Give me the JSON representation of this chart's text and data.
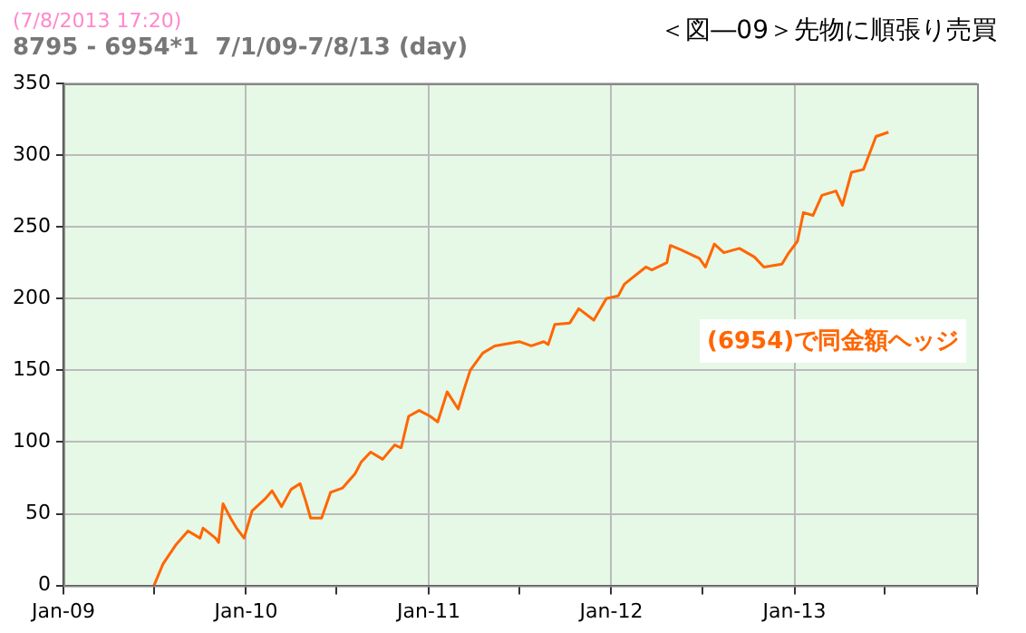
{
  "chart_data": {
    "type": "line",
    "title": "＜図―09＞先物に順張り売買",
    "subtitle": "8795 - 6954*1  7/1/09-7/8/13 (day)",
    "annotations": [
      "(7/8/2013 17:20)",
      "(6954)で同金額ヘッジ"
    ],
    "x": [
      "2009-07-01",
      "2009-07-19",
      "2009-08-13",
      "2009-09-07",
      "2009-10-01",
      "2009-10-07",
      "2009-11-01",
      "2009-11-07",
      "2009-11-16",
      "2009-12-01",
      "2009-12-13",
      "2009-12-28",
      "2010-01-13",
      "2010-02-07",
      "2010-02-22",
      "2010-03-13",
      "2010-04-01",
      "2010-04-19",
      "2010-05-01",
      "2010-05-10",
      "2010-06-01",
      "2010-06-19",
      "2010-07-13",
      "2010-08-07",
      "2010-08-19",
      "2010-09-07",
      "2010-10-01",
      "2010-10-25",
      "2010-11-07",
      "2010-11-22",
      "2010-12-13",
      "2011-01-04",
      "2011-01-19",
      "2011-02-07",
      "2011-03-01",
      "2011-03-13",
      "2011-03-25",
      "2011-04-19",
      "2011-05-13",
      "2011-07-01",
      "2011-07-25",
      "2011-08-19",
      "2011-08-28",
      "2011-09-10",
      "2011-10-10",
      "2011-10-28",
      "2011-11-27",
      "2011-12-22",
      "2012-01-15",
      "2012-01-27",
      "2012-03-10",
      "2012-03-22",
      "2012-04-21",
      "2012-04-28",
      "2012-05-19",
      "2012-06-25",
      "2012-07-07",
      "2012-07-25",
      "2012-08-13",
      "2012-09-13",
      "2012-10-13",
      "2012-11-01",
      "2012-12-07",
      "2012-12-19",
      "2013-01-07",
      "2013-01-19",
      "2013-02-07",
      "2013-02-25",
      "2013-03-25",
      "2013-04-07",
      "2013-04-25",
      "2013-05-19",
      "2013-06-01",
      "2013-06-13",
      "2013-07-08"
    ],
    "series": [
      {
        "color": "#ff6600",
        "values": [
          0,
          15,
          28,
          38,
          33,
          40,
          33,
          30,
          57,
          47,
          40,
          33,
          52,
          60,
          66,
          55,
          67,
          71,
          58,
          47,
          47,
          65,
          68,
          78,
          86,
          93,
          88,
          98,
          96,
          118,
          122,
          118,
          114,
          135,
          123,
          137,
          150,
          162,
          167,
          170,
          167,
          170,
          168,
          182,
          183,
          193,
          185,
          200,
          202,
          210,
          222,
          220,
          225,
          237,
          234,
          228,
          222,
          238,
          232,
          235,
          229,
          222,
          224,
          231,
          240,
          260,
          258,
          272,
          275,
          265,
          288,
          290,
          302,
          313,
          316
        ]
      }
    ],
    "xlim": [
      "2009-01",
      "2014-01"
    ],
    "xticks": [
      {
        "value": "2009-01",
        "label": "Jan-09"
      },
      {
        "value": "2009-07",
        "label": null
      },
      {
        "value": "2010-01",
        "label": "Jan-10"
      },
      {
        "value": "2010-07",
        "label": null
      },
      {
        "value": "2011-01",
        "label": "Jan-11"
      },
      {
        "value": "2011-07",
        "label": null
      },
      {
        "value": "2012-01",
        "label": "Jan-12"
      },
      {
        "value": "2012-07",
        "label": null
      },
      {
        "value": "2013-01",
        "label": "Jan-13"
      },
      {
        "value": "2013-07",
        "label": null
      },
      {
        "value": "2014-01",
        "label": null
      }
    ],
    "ylim": [
      0,
      350
    ],
    "yticks": [
      0,
      50,
      100,
      150,
      200,
      250,
      300,
      350
    ],
    "grid": true,
    "legend": false,
    "marker": "none",
    "line_style": "solid"
  }
}
